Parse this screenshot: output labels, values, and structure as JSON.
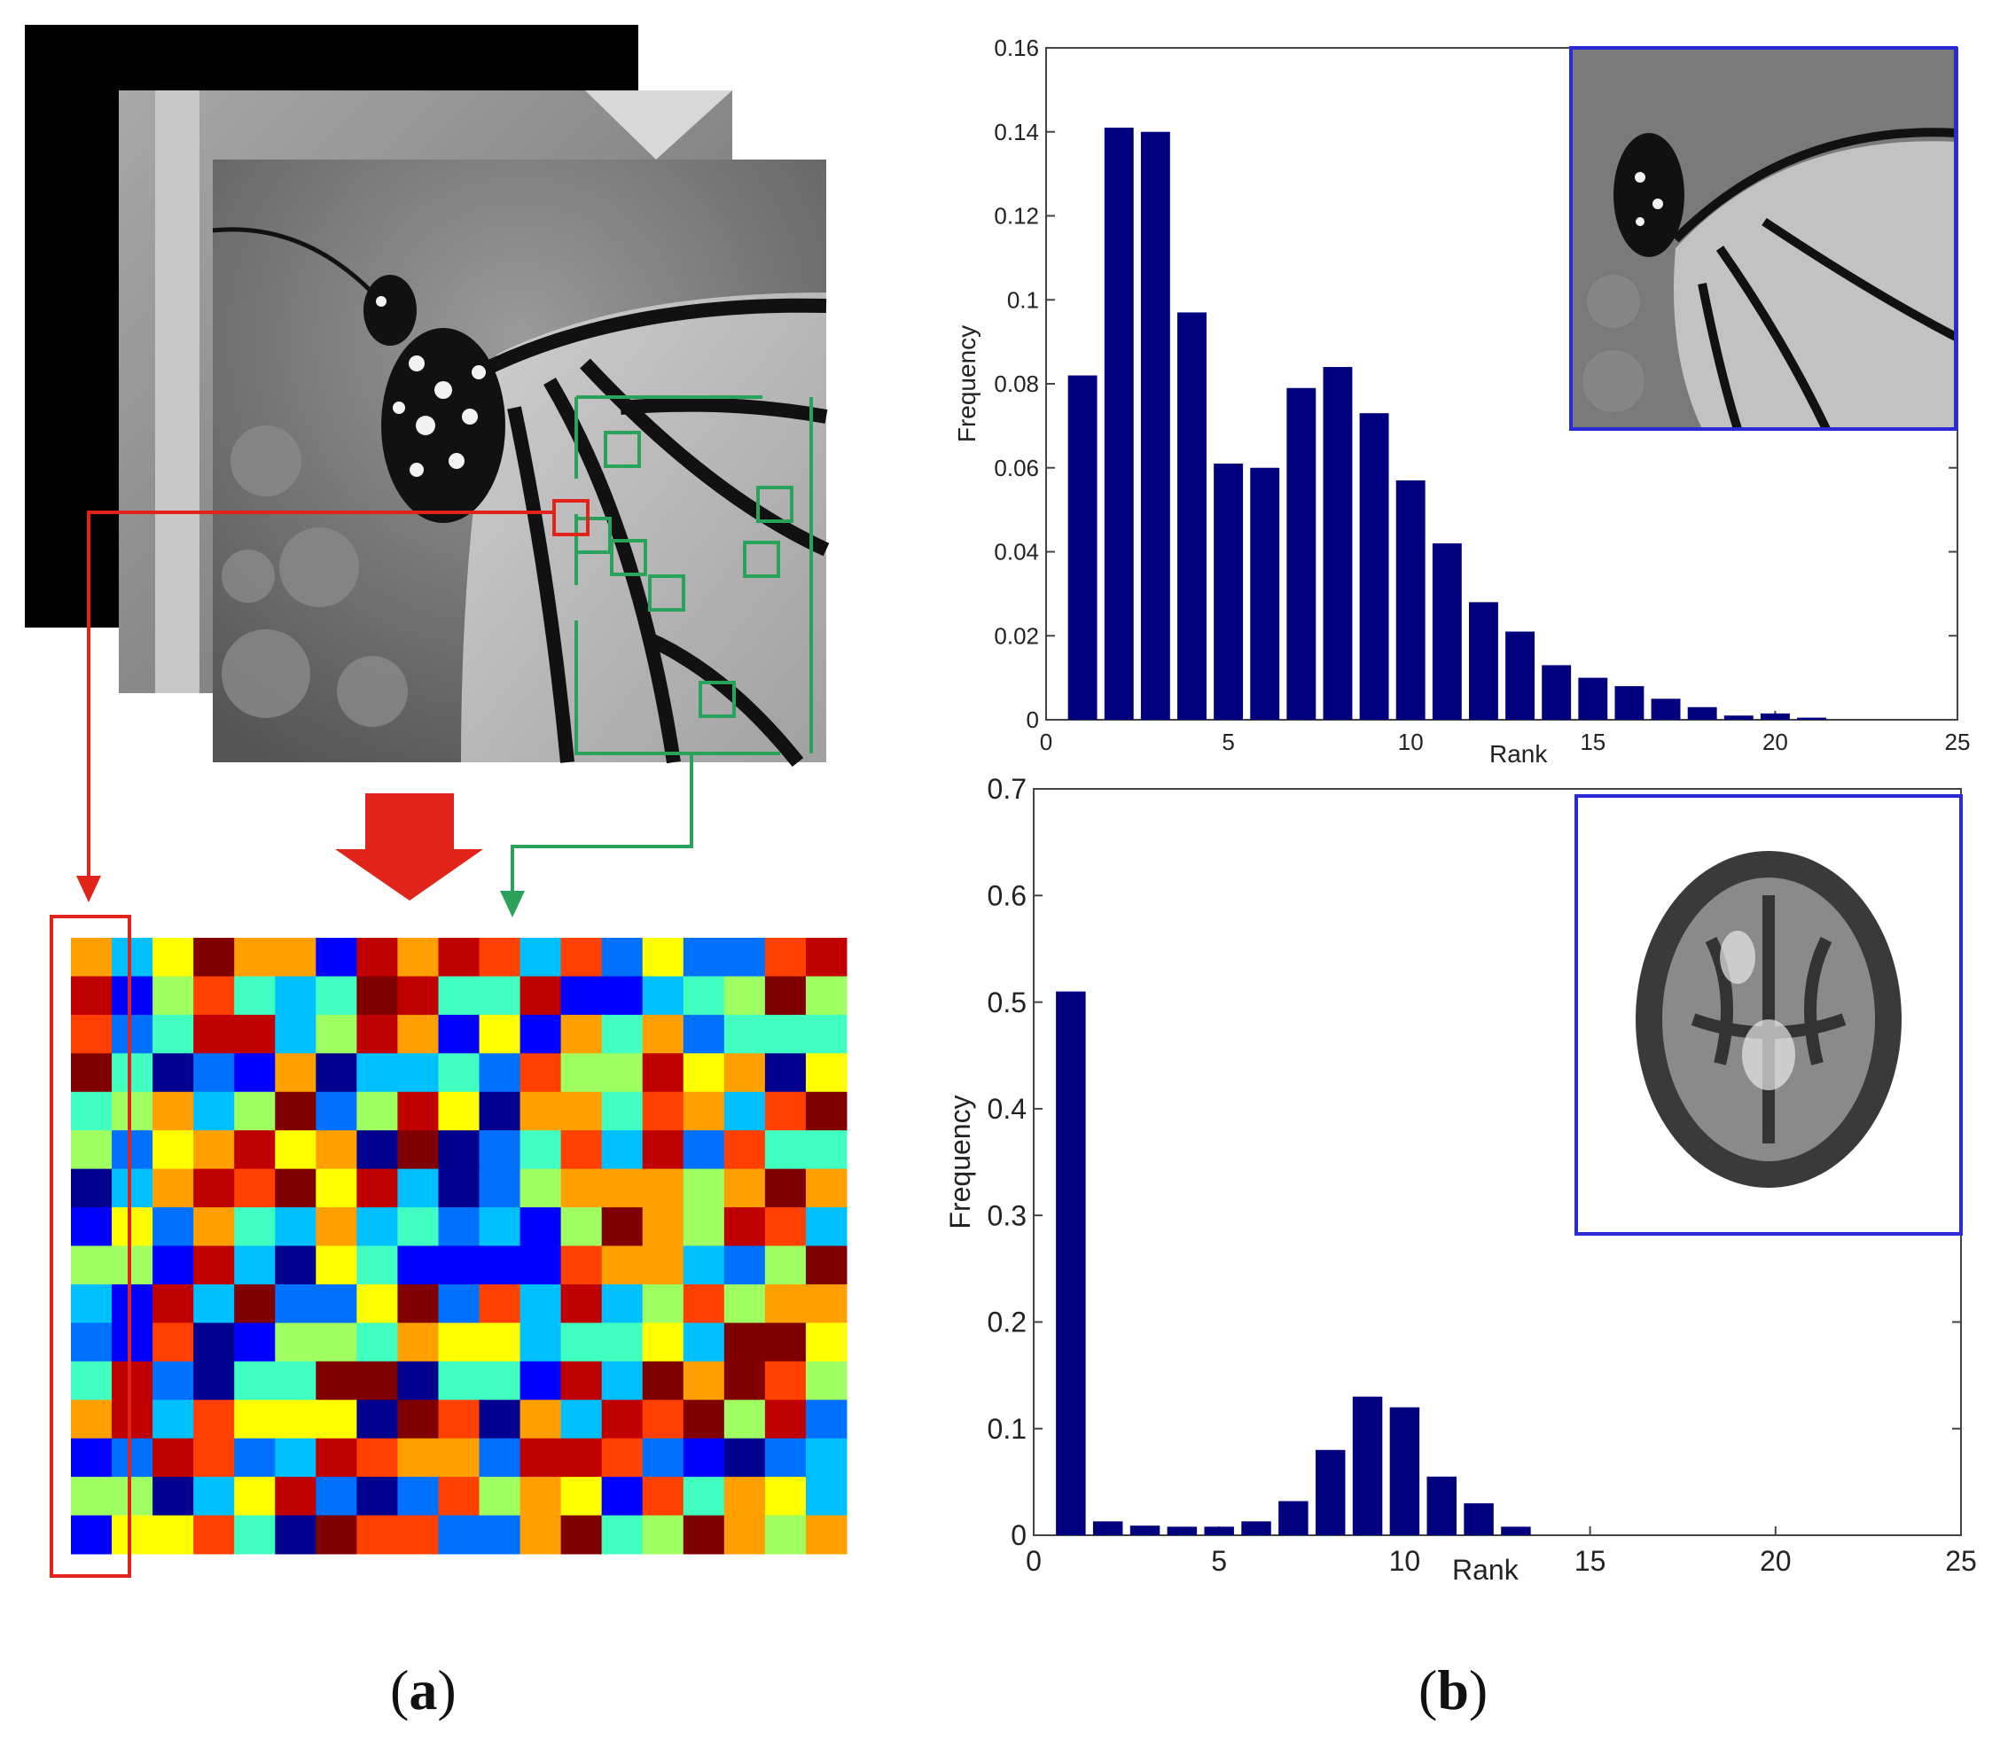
{
  "captions": {
    "a": "a",
    "b": "b"
  },
  "patch_matrix": {
    "rows": 16,
    "cols": 19,
    "colormap": "jet",
    "highlight_color": "#e2231a",
    "group_color": "#2aa35a",
    "arrow_color": "#e2231a"
  },
  "chart_data": [
    {
      "type": "bar",
      "x": [
        1,
        2,
        3,
        4,
        5,
        6,
        7,
        8,
        9,
        10,
        11,
        12,
        13,
        14,
        15,
        16,
        17,
        18,
        19,
        20,
        21
      ],
      "values": [
        0.082,
        0.141,
        0.14,
        0.097,
        0.061,
        0.06,
        0.079,
        0.084,
        0.073,
        0.057,
        0.042,
        0.028,
        0.021,
        0.013,
        0.01,
        0.008,
        0.005,
        0.003,
        0.001,
        0.0015,
        0.0005
      ],
      "xlabel": "Rank",
      "ylabel": "Frequency",
      "xlim": [
        0,
        25
      ],
      "ylim": [
        0,
        0.16
      ],
      "xticks": [
        "0",
        "5",
        "10",
        "15",
        "20",
        "25"
      ],
      "yticks": [
        "0",
        "0.02",
        "0.04",
        "0.06",
        "0.08",
        "0.1",
        "0.12",
        "0.14",
        "0.16"
      ],
      "bar_color": "#00007f",
      "inset": "butterfly-image"
    },
    {
      "type": "bar",
      "x": [
        1,
        2,
        3,
        4,
        5,
        6,
        7,
        8,
        9,
        10,
        11,
        12,
        13
      ],
      "values": [
        0.51,
        0.013,
        0.009,
        0.008,
        0.008,
        0.013,
        0.032,
        0.08,
        0.13,
        0.12,
        0.055,
        0.03,
        0.008
      ],
      "xlabel": "Rank",
      "ylabel": "Frequency",
      "xlim": [
        0,
        25
      ],
      "ylim": [
        0,
        0.7
      ],
      "xticks": [
        "0",
        "5",
        "10",
        "15",
        "20",
        "25"
      ],
      "yticks": [
        "0",
        "0.1",
        "0.2",
        "0.3",
        "0.4",
        "0.5",
        "0.6",
        "0.7"
      ],
      "bar_color": "#00007f",
      "inset": "brain-scan-image"
    }
  ]
}
